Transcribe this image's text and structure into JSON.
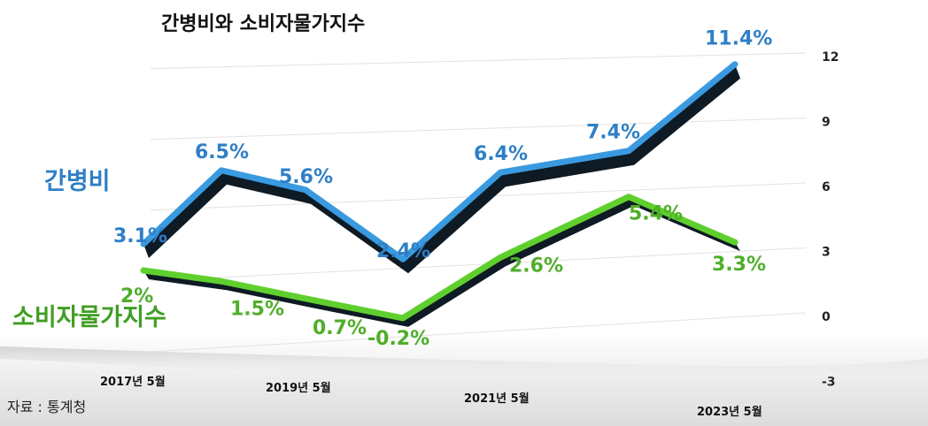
{
  "chart_data": {
    "type": "line",
    "title": "간병비와 소비자물가지수",
    "source": "자료 : 통계청",
    "y_ticks": [
      "12",
      "9",
      "6",
      "3",
      "0",
      "-3"
    ],
    "ylim": [
      -3,
      12
    ],
    "x_tick_labels": [
      "2017년 5월",
      "2019년 5월",
      "2021년 5월",
      "2023년 5월"
    ],
    "grid": true,
    "series": [
      {
        "name": "간병비",
        "color": "#3a9ae0",
        "values": [
          3.1,
          6.5,
          5.6,
          2.4,
          6.4,
          7.4,
          11.4
        ],
        "labels": [
          "3.1%",
          "6.5%",
          "5.6%",
          "2.4%",
          "6.4%",
          "7.4%",
          "11.4%"
        ]
      },
      {
        "name": "소비자물가지수",
        "color": "#5fcf2e",
        "values": [
          2,
          1.5,
          0.7,
          -0.2,
          2.6,
          5.4,
          3.3
        ],
        "labels": [
          "2%",
          "1.5%",
          "0.7%",
          "-0.2%",
          "2.6%",
          "5.4%",
          "3.3%"
        ]
      }
    ]
  }
}
